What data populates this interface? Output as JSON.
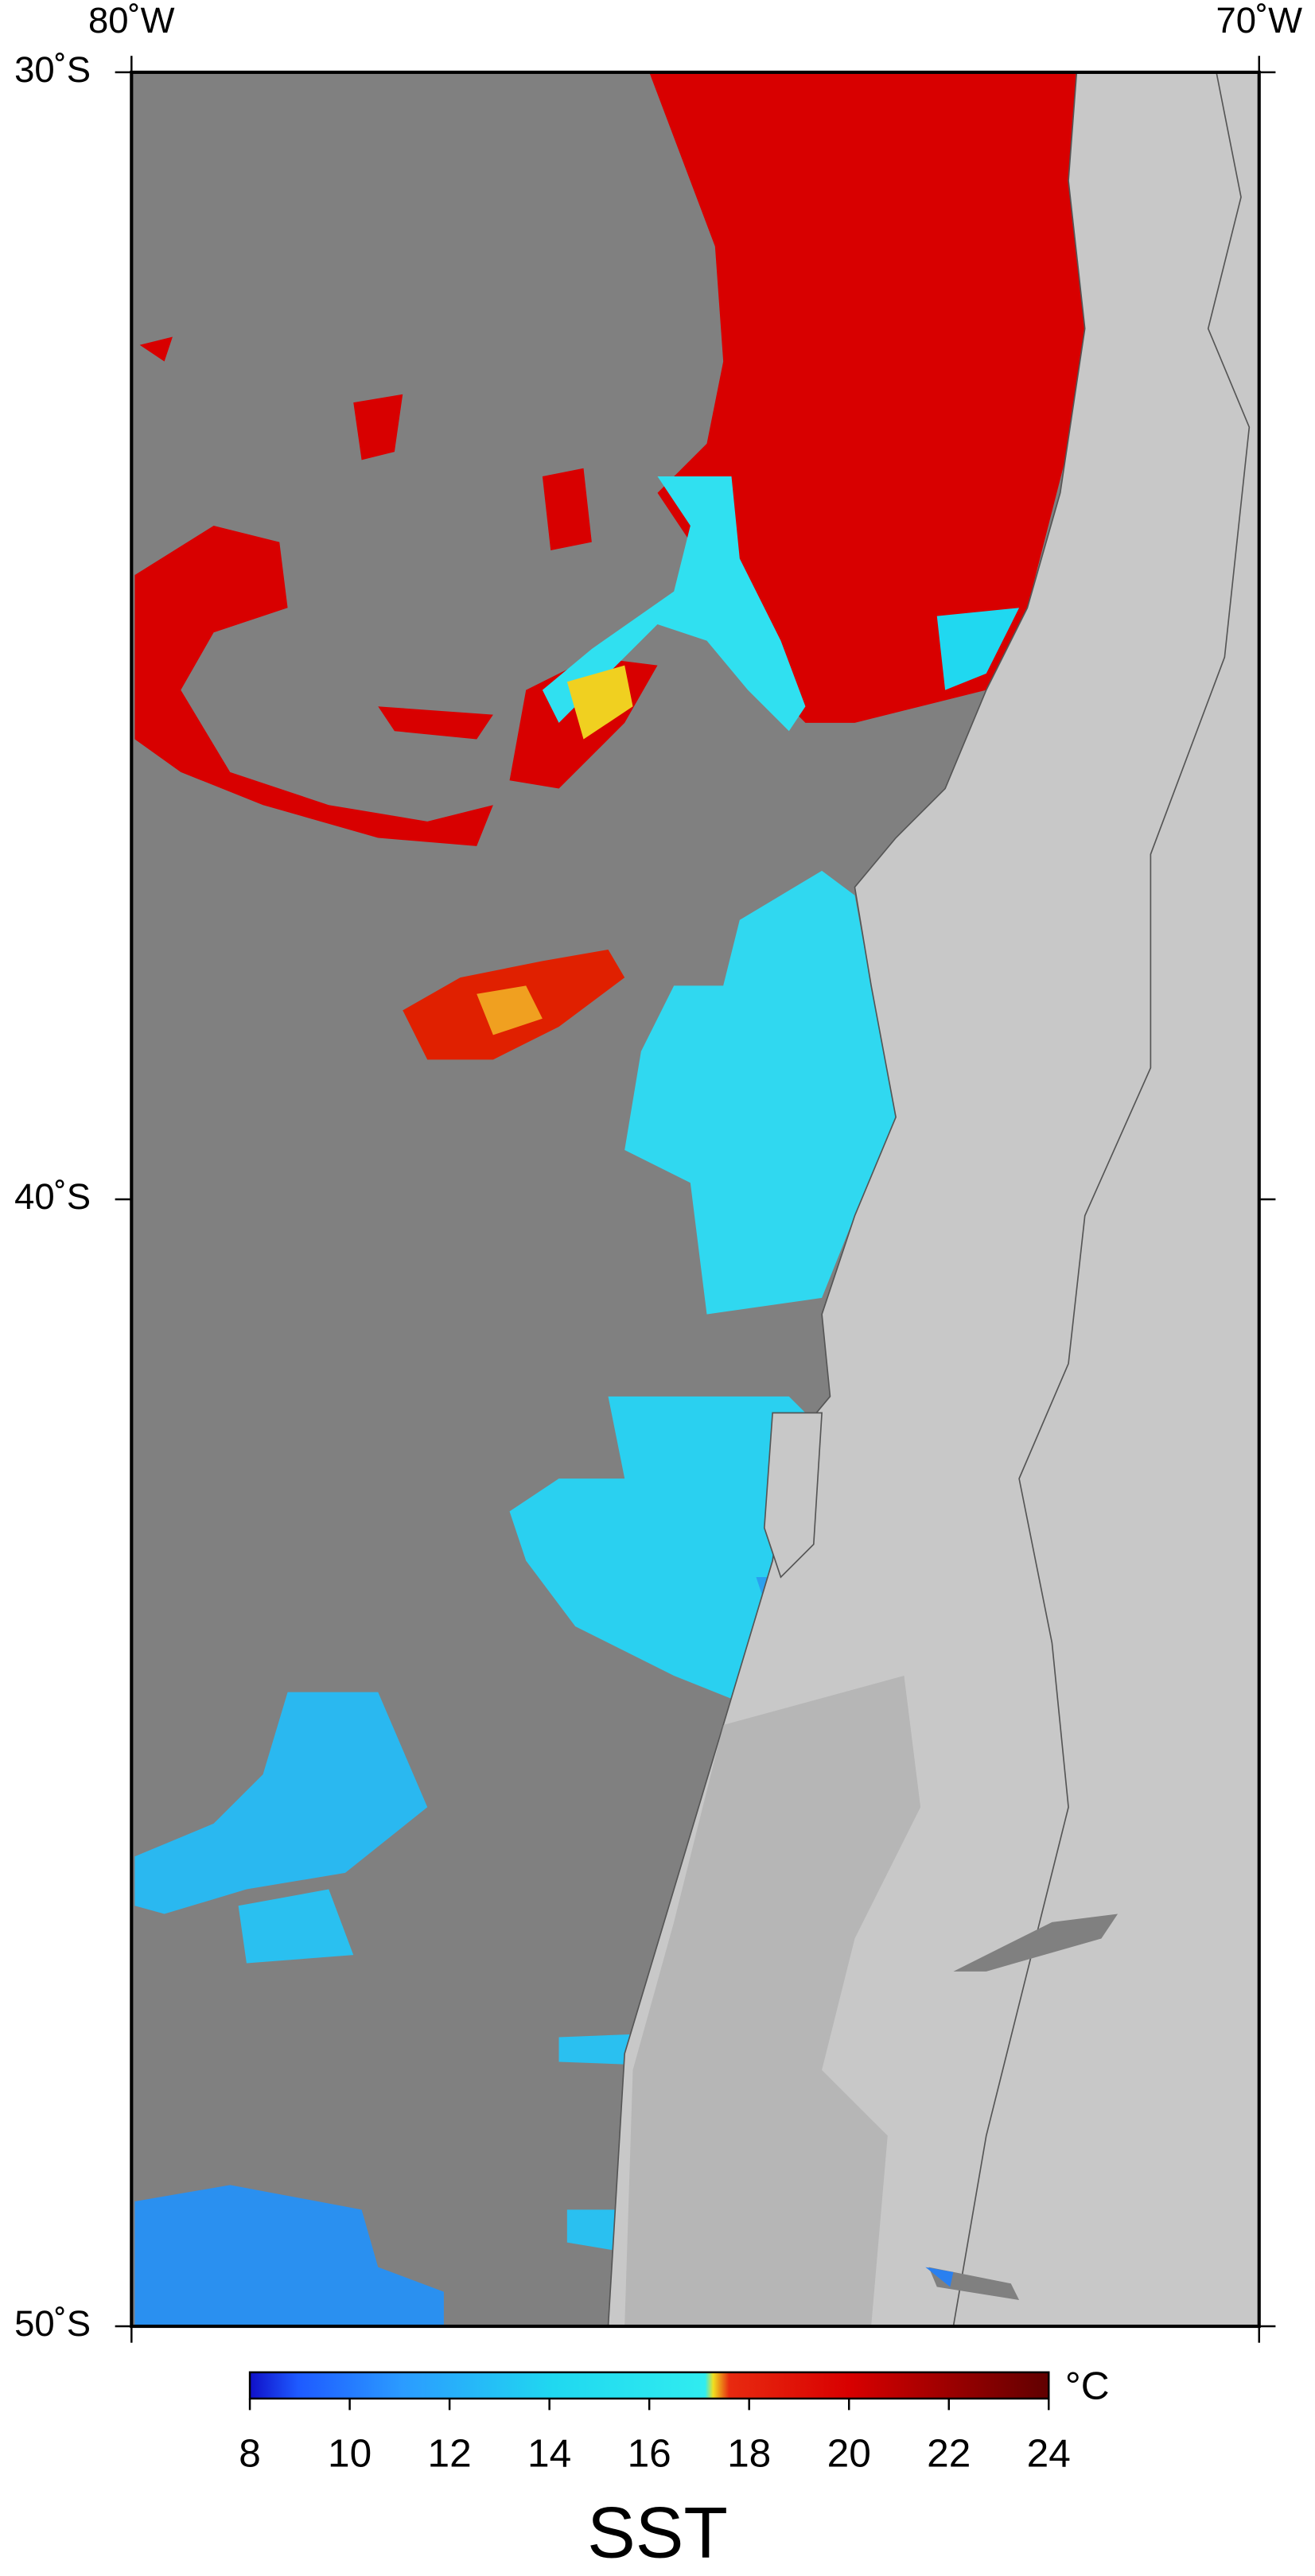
{
  "map": {
    "lon_labels": [
      "80˚W",
      "70˚W"
    ],
    "lat_labels": [
      "30˚S",
      "40˚S",
      "50˚S"
    ]
  },
  "colorbar": {
    "lim": [
      8,
      24
    ],
    "ticks": [
      8,
      10,
      12,
      14,
      16,
      18,
      20,
      22,
      24
    ],
    "unit": "°C"
  },
  "title": "SST"
}
